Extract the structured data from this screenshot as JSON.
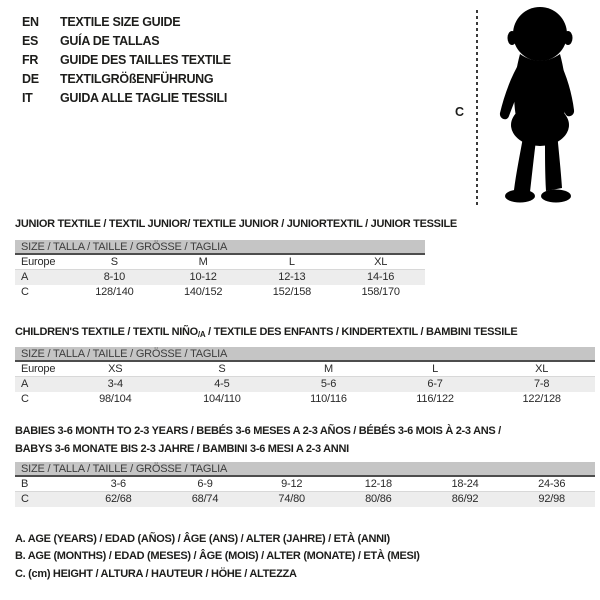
{
  "languages": [
    {
      "code": "EN",
      "title": "TEXTILE SIZE GUIDE"
    },
    {
      "code": "ES",
      "title": "GUÍA DE TALLAS"
    },
    {
      "code": "FR",
      "title": "GUIDE DES TAILLES TEXTILE"
    },
    {
      "code": "DE",
      "title": "TEXTILGRÖßENFÜHRUNG"
    },
    {
      "code": "IT",
      "title": "GUIDA ALLE TAGLIE TESSILI"
    }
  ],
  "figure": {
    "height_label": "C"
  },
  "size_bar_label": "SIZE / TALLA / TAILLE / GRÖSSE / TAGLIA",
  "junior": {
    "title": "JUNIOR TEXTILE / TEXTIL JUNIOR/ TEXTILE JUNIOR / JUNIORTEXTIL / JUNIOR TESSILE",
    "rows": [
      [
        "Europe",
        "S",
        "M",
        "L",
        "XL"
      ],
      [
        "A",
        "8-10",
        "10-12",
        "12-13",
        "14-16"
      ],
      [
        "C",
        "128/140",
        "140/152",
        "152/158",
        "158/170"
      ]
    ]
  },
  "children": {
    "title_pre": "CHILDREN'S TEXTILE / TEXTIL NIÑO",
    "title_sub": "/A",
    "title_post": " / TEXTILE DES ENFANTS / KINDERTEXTIL / BAMBINI TESSILE",
    "rows": [
      [
        "Europe",
        "XS",
        "S",
        "M",
        "L",
        "XL"
      ],
      [
        "A",
        "3-4",
        "4-5",
        "5-6",
        "6-7",
        "7-8"
      ],
      [
        "C",
        "98/104",
        "104/110",
        "110/116",
        "116/122",
        "122/128"
      ]
    ]
  },
  "babies": {
    "title_line1": "BABIES 3-6 MONTH TO 2-3 YEARS / BEBÉS 3-6 MESES A 2-3 AÑOS / BÉBÉS 3-6 MOIS À 2-3 ANS /",
    "title_line2": "BABYS 3-6 MONATE BIS 2-3 JAHRE / BAMBINI 3-6 MESI A 2-3 ANNI",
    "rows": [
      [
        "B",
        "3-6",
        "6-9",
        "9-12",
        "12-18",
        "18-24",
        "24-36"
      ],
      [
        "C",
        "62/68",
        "68/74",
        "74/80",
        "80/86",
        "86/92",
        "92/98"
      ]
    ]
  },
  "notes": [
    "A. AGE (YEARS) / EDAD (AÑOS) / ÂGE (ANS) / ALTER (JAHRE) / ETÀ (ANNI)",
    "B. AGE (MONTHS) / EDAD (MESES) / ÂGE (MOIS) / ALTER (MONATE) / ETÀ (MESI)",
    "C. (cm) HEIGHT / ALTURA / HAUTEUR / HÖHE / ALTEZZA"
  ],
  "colors": {
    "size_bar_bg": "#c5c5c5",
    "shaded_row_bg": "#ededed",
    "text": "#1d1d1b",
    "dark_rule": "#4d4d4d",
    "silhouette": "#000000"
  }
}
